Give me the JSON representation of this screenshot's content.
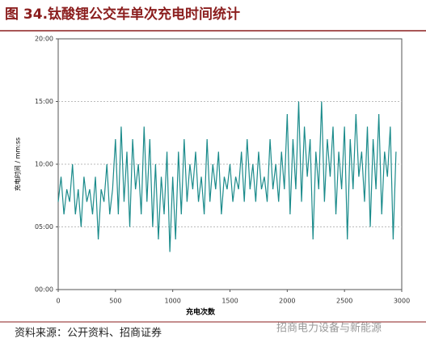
{
  "chart_data": {
    "type": "line",
    "title": "图 34.钛酸锂公交车单次充电时间统计",
    "y_label": "充电时间 / mm:ss",
    "x_label": "充电次数",
    "source": "资料来源：公开资料、招商证券",
    "watermark": "招商电力设备与新能源",
    "xlim": [
      0,
      3000
    ],
    "xticks": [
      0,
      500,
      1000,
      1500,
      2000,
      2500,
      3000
    ],
    "ylim": [
      0,
      20
    ],
    "yticks": [
      {
        "value": 0,
        "label": "00:00"
      },
      {
        "value": 5,
        "label": "05:00"
      },
      {
        "value": 10,
        "label": "10:00"
      },
      {
        "value": 15,
        "label": "15:00"
      },
      {
        "value": 20,
        "label": "20:00"
      }
    ],
    "grid": true,
    "series": [
      {
        "color": "#1b8b8b",
        "x": [
          0,
          25,
          50,
          75,
          100,
          125,
          150,
          175,
          200,
          225,
          250,
          275,
          300,
          325,
          350,
          375,
          400,
          425,
          450,
          475,
          500,
          525,
          550,
          575,
          600,
          625,
          650,
          675,
          700,
          725,
          750,
          775,
          800,
          825,
          850,
          875,
          900,
          925,
          950,
          975,
          1000,
          1025,
          1050,
          1075,
          1100,
          1125,
          1150,
          1175,
          1200,
          1225,
          1250,
          1275,
          1300,
          1325,
          1350,
          1375,
          1400,
          1425,
          1450,
          1475,
          1500,
          1525,
          1550,
          1575,
          1600,
          1625,
          1650,
          1675,
          1700,
          1725,
          1750,
          1775,
          1800,
          1825,
          1850,
          1875,
          1900,
          1925,
          1950,
          1975,
          2000,
          2025,
          2050,
          2075,
          2100,
          2125,
          2150,
          2175,
          2200,
          2225,
          2250,
          2275,
          2300,
          2325,
          2350,
          2375,
          2400,
          2425,
          2450,
          2475,
          2500,
          2525,
          2550,
          2575,
          2600,
          2625,
          2650,
          2675,
          2700,
          2725,
          2750,
          2775,
          2800,
          2825,
          2850,
          2875,
          2900,
          2925,
          2950
        ],
        "values": [
          7,
          9,
          6,
          8,
          7,
          10,
          6,
          8,
          5,
          9,
          7,
          8,
          6,
          9,
          4,
          8,
          7,
          10,
          6,
          8,
          12,
          6,
          13,
          7,
          11,
          5,
          12,
          8,
          10,
          6,
          13,
          7,
          12,
          5,
          10,
          4,
          9,
          6,
          11,
          3,
          9,
          4,
          11,
          6,
          12,
          7,
          10,
          8,
          11,
          7,
          9,
          6,
          12,
          7,
          10,
          8,
          11,
          6,
          9,
          8,
          10,
          7,
          9,
          8,
          11,
          7,
          12,
          8,
          10,
          7,
          11,
          8,
          9,
          7,
          12,
          8,
          10,
          7,
          11,
          8,
          14,
          6,
          12,
          8,
          15,
          7,
          13,
          9,
          12,
          4,
          11,
          8,
          15,
          7,
          12,
          9,
          13,
          6,
          11,
          8,
          13,
          4,
          12,
          8,
          14,
          9,
          11,
          7,
          13,
          5,
          12,
          8,
          14,
          6,
          11,
          9,
          13,
          4,
          11
        ]
      }
    ]
  }
}
